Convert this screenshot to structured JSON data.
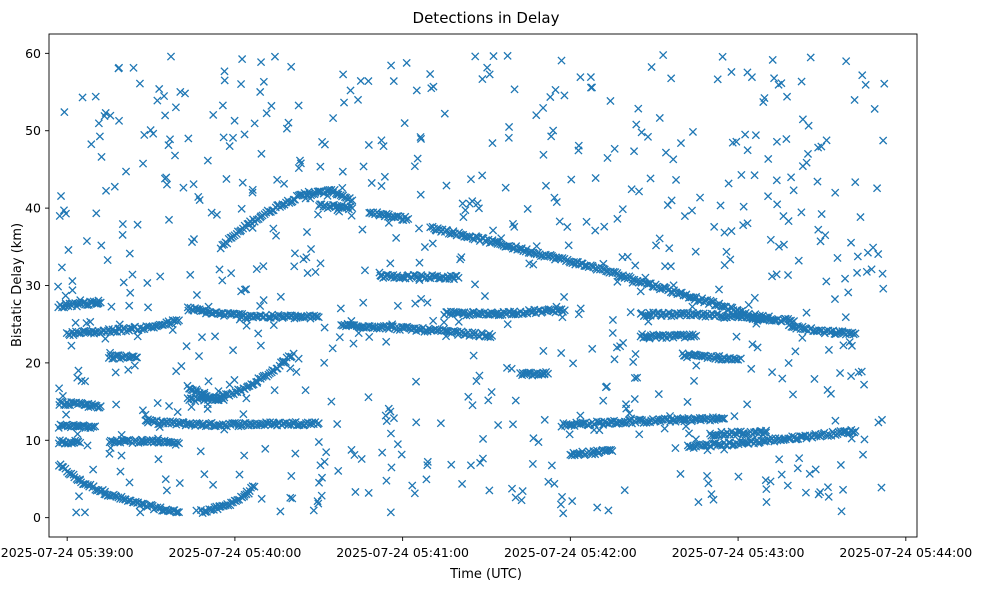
{
  "chart_data": {
    "type": "scatter",
    "title": "Detections in Delay",
    "xlabel": "Time (UTC)",
    "ylabel": "Bistatic Delay (km)",
    "x_unit": "seconds after 2025-07-24 05:38:00",
    "xlim": [
      53.5,
      364
    ],
    "ylim": [
      -2.5,
      62.5
    ],
    "x_ticks": [
      {
        "value": 60,
        "label": "2025-07-24 05:39:00"
      },
      {
        "value": 120,
        "label": "2025-07-24 05:40:00"
      },
      {
        "value": 180,
        "label": "2025-07-24 05:41:00"
      },
      {
        "value": 240,
        "label": "2025-07-24 05:42:00"
      },
      {
        "value": 300,
        "label": "2025-07-24 05:43:00"
      },
      {
        "value": 360,
        "label": "2025-07-24 05:44:00"
      }
    ],
    "y_ticks": [
      {
        "value": 0,
        "label": "0"
      },
      {
        "value": 10,
        "label": "10"
      },
      {
        "value": 20,
        "label": "20"
      },
      {
        "value": 30,
        "label": "30"
      },
      {
        "value": 40,
        "label": "40"
      },
      {
        "value": 50,
        "label": "50"
      },
      {
        "value": 60,
        "label": "60"
      }
    ],
    "marker": "x",
    "color": "#1f77b4",
    "x_data_range": [
      56.5,
      352.5
    ],
    "y_data_range": [
      0.5,
      59.8
    ],
    "series": [
      {
        "name": "track-descending-low",
        "kind": "line",
        "points": [
          [
            57,
            6.8
          ],
          [
            65,
            4.6
          ],
          [
            75,
            3.0
          ],
          [
            85,
            1.8
          ],
          [
            95,
            1.0
          ],
          [
            100,
            0.7
          ]
        ]
      },
      {
        "name": "track-cup",
        "kind": "line",
        "points": [
          [
            108,
            0.8
          ],
          [
            115,
            1.3
          ],
          [
            122,
            2.5
          ],
          [
            127,
            4.0
          ]
        ]
      },
      {
        "name": "track-rising",
        "kind": "line",
        "points": [
          [
            103,
            15.2
          ],
          [
            113,
            15.4
          ],
          [
            123,
            16.5
          ],
          [
            133,
            18.8
          ],
          [
            141,
            21.2
          ]
        ]
      },
      {
        "name": "track-dip",
        "kind": "line",
        "points": [
          [
            103,
            17.0
          ],
          [
            110,
            15.6
          ],
          [
            116,
            15.2
          ]
        ]
      },
      {
        "name": "track-arc-upper",
        "kind": "line",
        "points": [
          [
            115,
            35.0
          ],
          [
            125,
            38.0
          ],
          [
            135,
            40.2
          ],
          [
            145,
            41.8
          ],
          [
            155,
            42.2
          ],
          [
            162,
            41.0
          ]
        ]
      },
      {
        "name": "track-12-left",
        "kind": "line",
        "points": [
          [
            88,
            12.4
          ],
          [
            110,
            12.0
          ],
          [
            130,
            12.1
          ],
          [
            150,
            12.2
          ]
        ]
      },
      {
        "name": "track-12-right",
        "kind": "line",
        "points": [
          [
            237,
            12.0
          ],
          [
            255,
            12.3
          ],
          [
            275,
            12.6
          ],
          [
            295,
            12.8
          ]
        ]
      },
      {
        "name": "track-10-right",
        "kind": "line",
        "points": [
          [
            282,
            9.2
          ],
          [
            300,
            9.6
          ],
          [
            320,
            10.3
          ],
          [
            342,
            11.2
          ]
        ]
      },
      {
        "name": "track-long-descending",
        "kind": "line",
        "points": [
          [
            190,
            37.5
          ],
          [
            210,
            35.8
          ],
          [
            230,
            34.0
          ],
          [
            250,
            32.2
          ],
          [
            270,
            30.0
          ],
          [
            290,
            27.8
          ],
          [
            304,
            26.2
          ],
          [
            310,
            25.8
          ]
        ]
      },
      {
        "name": "track-25-left",
        "kind": "line",
        "points": [
          [
            60,
            23.8
          ],
          [
            70,
            24.0
          ],
          [
            80,
            24.3
          ],
          [
            90,
            24.6
          ],
          [
            100,
            25.5
          ]
        ]
      },
      {
        "name": "track-26-mid",
        "kind": "line",
        "points": [
          [
            103,
            27.0
          ],
          [
            115,
            26.3
          ],
          [
            130,
            26.0
          ],
          [
            150,
            25.9
          ]
        ]
      },
      {
        "name": "track-24-center",
        "kind": "line",
        "points": [
          [
            158,
            24.9
          ],
          [
            175,
            24.6
          ],
          [
            190,
            24.2
          ],
          [
            205,
            23.7
          ],
          [
            212,
            23.5
          ]
        ]
      },
      {
        "name": "track-26-center",
        "kind": "line",
        "points": [
          [
            195,
            26.4
          ],
          [
            210,
            26.3
          ],
          [
            225,
            26.6
          ],
          [
            238,
            26.8
          ]
        ]
      },
      {
        "name": "track-26-right",
        "kind": "line",
        "points": [
          [
            265,
            26.3
          ],
          [
            285,
            26.2
          ],
          [
            305,
            25.9
          ],
          [
            320,
            25.4
          ]
        ]
      },
      {
        "name": "track-24-right",
        "kind": "line",
        "points": [
          [
            318,
            24.8
          ],
          [
            330,
            24.0
          ],
          [
            342,
            23.8
          ]
        ]
      },
      {
        "name": "track-21-right",
        "kind": "line",
        "points": [
          [
            280,
            21.0
          ],
          [
            290,
            20.8
          ],
          [
            300,
            20.4
          ]
        ]
      },
      {
        "name": "track-27-left",
        "kind": "line",
        "points": [
          [
            57,
            27.3
          ],
          [
            65,
            27.6
          ],
          [
            72,
            27.8
          ]
        ]
      },
      {
        "name": "track-15-left",
        "kind": "line",
        "points": [
          [
            57,
            14.8
          ],
          [
            65,
            14.6
          ],
          [
            72,
            14.4
          ]
        ]
      },
      {
        "name": "track-12-farleft",
        "kind": "line",
        "points": [
          [
            57,
            11.8
          ],
          [
            64,
            11.8
          ],
          [
            70,
            11.8
          ]
        ]
      },
      {
        "name": "track-10-leftmid",
        "kind": "line",
        "points": [
          [
            75,
            10.0
          ],
          [
            90,
            9.8
          ],
          [
            100,
            9.6
          ]
        ]
      },
      {
        "name": "track-10-leftedge",
        "kind": "line",
        "points": [
          [
            57,
            9.8
          ],
          [
            64,
            9.8
          ]
        ]
      },
      {
        "name": "track-21-leftmid",
        "kind": "line",
        "points": [
          [
            75,
            20.8
          ],
          [
            85,
            20.7
          ]
        ]
      },
      {
        "name": "track-23-right",
        "kind": "line",
        "points": [
          [
            265,
            23.5
          ],
          [
            275,
            23.4
          ],
          [
            285,
            23.5
          ]
        ]
      },
      {
        "name": "track-12-lower",
        "kind": "line",
        "points": [
          [
            290,
            10.8
          ],
          [
            310,
            11.0
          ]
        ]
      },
      {
        "name": "track-18-mid",
        "kind": "line",
        "points": [
          [
            222,
            18.5
          ],
          [
            232,
            18.6
          ]
        ]
      },
      {
        "name": "track-8-mid",
        "kind": "line",
        "points": [
          [
            240,
            8.2
          ],
          [
            255,
            8.6
          ]
        ]
      },
      {
        "name": "track-38-mid",
        "kind": "line",
        "points": [
          [
            168,
            39.5
          ],
          [
            178,
            38.8
          ],
          [
            182,
            38.6
          ]
        ]
      },
      {
        "name": "track-40-mid",
        "kind": "line",
        "points": [
          [
            150,
            40.3
          ],
          [
            162,
            40.0
          ]
        ]
      },
      {
        "name": "track-31-mid",
        "kind": "line",
        "points": [
          [
            172,
            31.2
          ],
          [
            190,
            31.1
          ],
          [
            200,
            31.0
          ]
        ]
      },
      {
        "name": "clutter",
        "kind": "random",
        "count": 700,
        "x_range": [
          56.5,
          352.5
        ],
        "y_range": [
          0.5,
          59.8
        ]
      }
    ]
  }
}
